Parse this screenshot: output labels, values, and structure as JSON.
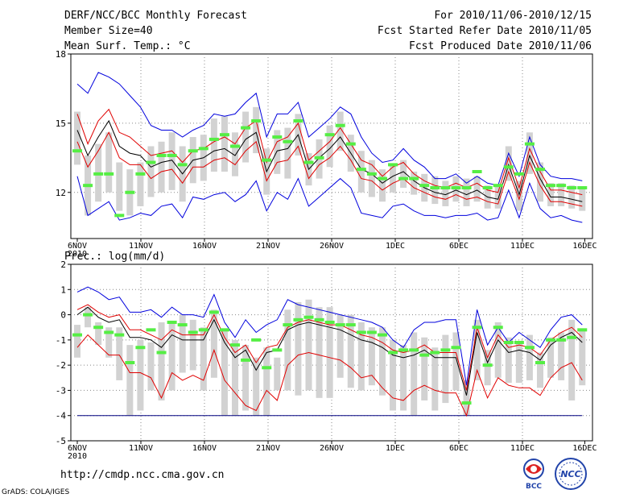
{
  "header": {
    "title": "DERF/NCC/BCC Monthly Forecast",
    "member": "Member Size=40",
    "variable": "Mean Surf. Temp.: °C",
    "period": "For 2010/11/06-2010/12/15",
    "started": "Fcst Started Refer Date 2010/11/05",
    "produced": "Fcst Produced Date 2010/11/06"
  },
  "footer": {
    "url": "http://cmdp.ncc.cma.gov.cn",
    "credit": "GrADS: COLA/IGES"
  },
  "logos": {
    "bcc": "BCC",
    "ncc": "NCC"
  },
  "colors": {
    "box": "#d2d2d2",
    "mean": "#000000",
    "std": "#e00000",
    "extreme": "#0000dd",
    "median": "#55ee44",
    "floor": "#000080"
  },
  "chart_data": [
    {
      "type": "line",
      "title": "Mean Surf. Temp.: °C",
      "ylim": [
        10,
        18
      ],
      "yticks": [
        12,
        15,
        18
      ],
      "x_days": 40,
      "xticks": [
        {
          "day": 0,
          "label": "6NOV",
          "sub": "2010"
        },
        {
          "day": 5,
          "label": "11NOV"
        },
        {
          "day": 10,
          "label": "16NOV"
        },
        {
          "day": 15,
          "label": "21NOV"
        },
        {
          "day": 20,
          "label": "26NOV"
        },
        {
          "day": 25,
          "label": "1DEC"
        },
        {
          "day": 30,
          "label": "6DEC"
        },
        {
          "day": 35,
          "label": "11DEC"
        },
        {
          "day": 39.9,
          "label": "16DEC"
        }
      ],
      "series": [
        {
          "name": "max",
          "values": [
            16.7,
            16.3,
            17.2,
            17.0,
            16.7,
            16.2,
            15.7,
            14.9,
            14.7,
            14.7,
            14.4,
            14.7,
            14.9,
            15.4,
            15.3,
            15.4,
            15.9,
            16.3,
            14.4,
            15.4,
            15.4,
            15.9,
            14.4,
            14.8,
            15.2,
            15.7,
            15.4,
            14.4,
            13.7,
            13.3,
            13.4,
            13.9,
            13.4,
            13.1,
            12.6,
            12.6,
            12.8,
            12.4,
            12.7,
            12.4,
            12.3,
            13.7,
            12.7,
            14.4,
            13.2,
            12.7,
            12.6,
            12.6,
            12.5
          ]
        },
        {
          "name": "std_hi",
          "values": [
            15.4,
            14.1,
            15.1,
            15.6,
            14.6,
            14.4,
            14.0,
            13.6,
            13.7,
            13.8,
            13.3,
            13.8,
            13.9,
            14.2,
            14.4,
            14.1,
            14.8,
            15.1,
            13.3,
            14.2,
            14.4,
            15.0,
            13.4,
            13.8,
            14.2,
            14.8,
            14.1,
            13.4,
            13.2,
            12.7,
            13.1,
            13.3,
            12.8,
            12.5,
            12.3,
            12.2,
            12.4,
            12.2,
            12.4,
            12.1,
            12.0,
            13.5,
            12.2,
            13.9,
            12.9,
            12.1,
            12.1,
            12.0,
            11.9
          ]
        },
        {
          "name": "mean",
          "values": [
            14.7,
            13.6,
            14.4,
            15.1,
            14.0,
            13.7,
            13.6,
            13.1,
            13.3,
            13.4,
            12.8,
            13.4,
            13.5,
            13.8,
            13.9,
            13.6,
            14.3,
            14.6,
            12.9,
            13.8,
            13.9,
            14.5,
            13.0,
            13.5,
            13.9,
            14.4,
            13.7,
            13.0,
            12.8,
            12.4,
            12.7,
            12.9,
            12.5,
            12.2,
            12.0,
            11.9,
            12.1,
            11.9,
            12.1,
            11.8,
            11.7,
            13.2,
            11.9,
            13.6,
            12.6,
            11.8,
            11.8,
            11.7,
            11.6
          ]
        },
        {
          "name": "std_lo",
          "values": [
            14.2,
            13.1,
            13.8,
            14.6,
            13.5,
            13.2,
            13.2,
            12.6,
            12.9,
            13.0,
            12.4,
            13.1,
            13.1,
            13.4,
            13.5,
            13.2,
            13.8,
            14.2,
            12.5,
            13.3,
            13.4,
            14.0,
            12.6,
            13.2,
            13.5,
            14.0,
            13.4,
            12.6,
            12.5,
            12.1,
            12.4,
            12.6,
            12.2,
            12.0,
            11.8,
            11.7,
            11.9,
            11.7,
            11.8,
            11.6,
            11.5,
            12.9,
            11.7,
            13.3,
            12.3,
            11.6,
            11.6,
            11.5,
            11.4
          ]
        },
        {
          "name": "min",
          "values": [
            12.7,
            11.0,
            11.3,
            11.6,
            10.8,
            10.9,
            11.1,
            11.0,
            11.4,
            11.5,
            10.9,
            11.8,
            11.7,
            11.9,
            12.0,
            11.6,
            11.9,
            12.5,
            11.2,
            12.0,
            11.7,
            12.6,
            11.4,
            11.8,
            12.2,
            12.6,
            12.2,
            11.1,
            11.0,
            10.9,
            11.4,
            11.5,
            11.2,
            11.0,
            11.0,
            10.9,
            11.0,
            11.0,
            11.1,
            10.8,
            10.9,
            12.1,
            10.9,
            12.4,
            11.3,
            10.9,
            11.0,
            10.8,
            10.7
          ]
        }
      ],
      "boxes": [
        [
          13.2,
          15.5
        ],
        [
          11.0,
          13.6
        ],
        [
          11.6,
          14.1
        ],
        [
          12.0,
          14.6
        ],
        [
          11.2,
          13.3
        ],
        [
          11.0,
          13.0
        ],
        [
          11.4,
          13.3
        ],
        [
          11.8,
          14.0
        ],
        [
          12.0,
          14.2
        ],
        [
          12.1,
          14.6
        ],
        [
          11.6,
          14.0
        ],
        [
          12.4,
          14.4
        ],
        [
          12.5,
          14.5
        ],
        [
          12.9,
          15.2
        ],
        [
          12.9,
          15.3
        ],
        [
          12.7,
          14.6
        ],
        [
          13.3,
          15.5
        ],
        [
          13.7,
          15.7
        ],
        [
          11.9,
          13.9
        ],
        [
          12.8,
          14.7
        ],
        [
          12.6,
          14.8
        ],
        [
          13.6,
          15.4
        ],
        [
          12.3,
          13.7
        ],
        [
          12.6,
          14.3
        ],
        [
          13.1,
          14.9
        ],
        [
          13.8,
          15.5
        ],
        [
          12.9,
          14.5
        ],
        [
          12.0,
          13.8
        ],
        [
          11.8,
          13.4
        ],
        [
          11.6,
          13.0
        ],
        [
          12.0,
          13.2
        ],
        [
          12.2,
          13.4
        ],
        [
          11.9,
          12.9
        ],
        [
          11.6,
          12.8
        ],
        [
          11.5,
          12.7
        ],
        [
          11.4,
          12.5
        ],
        [
          11.6,
          12.7
        ],
        [
          11.4,
          12.6
        ],
        [
          11.6,
          12.7
        ],
        [
          11.3,
          12.3
        ],
        [
          11.3,
          12.3
        ],
        [
          12.5,
          14.0
        ],
        [
          11.2,
          12.5
        ],
        [
          12.8,
          14.6
        ],
        [
          11.6,
          13.3
        ],
        [
          11.4,
          12.4
        ],
        [
          11.4,
          12.4
        ],
        [
          11.3,
          12.3
        ],
        [
          11.2,
          12.2
        ]
      ],
      "medians": [
        13.8,
        12.3,
        12.8,
        12.8,
        11.0,
        12.0,
        12.8,
        13.3,
        13.6,
        13.6,
        13.2,
        13.8,
        13.9,
        14.3,
        14.5,
        14.0,
        14.8,
        15.1,
        13.4,
        14.4,
        14.2,
        15.1,
        13.3,
        13.5,
        14.5,
        14.9,
        14.1,
        13.0,
        12.8,
        12.6,
        13.2,
        12.6,
        12.6,
        12.3,
        12.2,
        12.2,
        12.2,
        12.2,
        12.9,
        12.2,
        12.3,
        13.1,
        12.8,
        14.1,
        13.0,
        12.3,
        12.3,
        12.2,
        12.2
      ]
    },
    {
      "type": "line",
      "title": "Prec.: log(mm/d)",
      "ylim": [
        -5,
        2
      ],
      "yticks": [
        -5,
        -4,
        -3,
        -2,
        -1,
        0,
        1,
        2
      ],
      "floor": -4,
      "x_days": 40,
      "xticks": [
        {
          "day": 0,
          "label": "6NOV",
          "sub": "2010"
        },
        {
          "day": 5,
          "label": "11NOV"
        },
        {
          "day": 10,
          "label": "16NOV"
        },
        {
          "day": 15,
          "label": "21NOV"
        },
        {
          "day": 20,
          "label": "26NOV"
        },
        {
          "day": 25,
          "label": "1DEC"
        },
        {
          "day": 30,
          "label": "6DEC"
        },
        {
          "day": 35,
          "label": "11DEC"
        },
        {
          "day": 39.9,
          "label": "16DEC"
        }
      ],
      "series": [
        {
          "name": "max",
          "values": [
            0.9,
            1.1,
            0.9,
            0.6,
            0.7,
            0.1,
            0.1,
            0.2,
            -0.1,
            0.3,
            0.0,
            0.0,
            -0.1,
            0.8,
            -0.3,
            -0.9,
            -0.2,
            -0.7,
            -0.4,
            -0.2,
            0.6,
            0.4,
            0.3,
            0.2,
            0.1,
            0.0,
            -0.1,
            -0.2,
            -0.3,
            -0.5,
            -1.0,
            -1.3,
            -0.6,
            -0.3,
            -0.3,
            -0.2,
            -0.2,
            -2.8,
            0.2,
            -1.2,
            -0.5,
            -1.1,
            -0.7,
            -1.0,
            -1.3,
            -0.6,
            -0.1,
            0.0,
            -0.4
          ]
        },
        {
          "name": "std_hi",
          "values": [
            0.2,
            0.4,
            0.1,
            -0.1,
            0.0,
            -0.6,
            -0.6,
            -0.8,
            -1.0,
            -0.6,
            -0.8,
            -0.8,
            -0.8,
            0.0,
            -0.9,
            -1.5,
            -1.2,
            -1.9,
            -1.3,
            -1.2,
            -0.5,
            -0.3,
            -0.2,
            -0.3,
            -0.4,
            -0.4,
            -0.6,
            -0.8,
            -0.9,
            -1.1,
            -1.4,
            -1.5,
            -1.4,
            -1.2,
            -1.5,
            -1.5,
            -1.5,
            -3.0,
            -0.5,
            -1.7,
            -0.8,
            -1.3,
            -1.2,
            -1.3,
            -1.6,
            -1.0,
            -0.7,
            -0.5,
            -0.9
          ]
        },
        {
          "name": "mean",
          "values": [
            0.0,
            0.3,
            -0.1,
            -0.3,
            -0.2,
            -0.9,
            -0.9,
            -1.0,
            -1.3,
            -0.8,
            -1.0,
            -1.0,
            -1.0,
            -0.2,
            -1.1,
            -1.7,
            -1.4,
            -2.2,
            -1.5,
            -1.4,
            -0.6,
            -0.4,
            -0.3,
            -0.4,
            -0.5,
            -0.6,
            -0.8,
            -1.0,
            -1.1,
            -1.3,
            -1.6,
            -1.7,
            -1.6,
            -1.4,
            -1.7,
            -1.7,
            -1.7,
            -3.2,
            -0.7,
            -1.9,
            -1.0,
            -1.5,
            -1.4,
            -1.5,
            -1.8,
            -1.2,
            -0.9,
            -0.7,
            -1.1
          ]
        },
        {
          "name": "std_lo",
          "values": [
            -1.3,
            -0.8,
            -1.2,
            -1.6,
            -1.6,
            -2.3,
            -2.3,
            -2.5,
            -3.3,
            -2.3,
            -2.6,
            -2.4,
            -2.6,
            -1.4,
            -2.6,
            -3.1,
            -3.6,
            -3.8,
            -3.0,
            -3.4,
            -2.0,
            -1.6,
            -1.5,
            -1.6,
            -1.7,
            -1.8,
            -2.1,
            -2.5,
            -2.4,
            -2.9,
            -3.3,
            -3.4,
            -3.0,
            -2.8,
            -3.0,
            -3.1,
            -3.1,
            -4.0,
            -2.2,
            -3.3,
            -2.5,
            -2.8,
            -2.9,
            -2.9,
            -3.2,
            -2.5,
            -2.1,
            -1.9,
            -2.6
          ]
        },
        {
          "name": "min",
          "values": [
            -4.0,
            -4.0,
            -4.0,
            -4.0,
            -4.0,
            -4.0,
            -4.0,
            -4.0,
            -4.0,
            -4.0,
            -4.0,
            -4.0,
            -4.0,
            -4.0,
            -4.0,
            -4.0,
            -4.0,
            -4.0,
            -4.0,
            -4.0,
            -4.0,
            -4.0,
            -4.0,
            -4.0,
            -4.0,
            -4.0,
            -4.0,
            -4.0,
            -4.0,
            -4.0,
            -4.0,
            -4.0,
            -4.0,
            -4.0,
            -4.0,
            -4.0,
            -4.0,
            -4.0,
            -4.0,
            -4.0,
            -4.0,
            -4.0,
            -4.0,
            -4.0,
            -4.0,
            -4.0,
            -4.0,
            -4.0,
            -4.0
          ]
        }
      ],
      "boxes": [
        [
          -1.7,
          -0.4
        ],
        [
          -0.5,
          0.3
        ],
        [
          -1.2,
          -0.3
        ],
        [
          -1.7,
          -0.5
        ],
        [
          -2.6,
          -0.5
        ],
        [
          -4.0,
          -1.2
        ],
        [
          -3.8,
          -1.0
        ],
        [
          -3.0,
          -1.1
        ],
        [
          -3.4,
          -0.3
        ],
        [
          -3.0,
          -0.3
        ],
        [
          -2.3,
          0.0
        ],
        [
          -2.2,
          -0.2
        ],
        [
          -3.0,
          -0.5
        ],
        [
          -2.5,
          0.2
        ],
        [
          -4.0,
          -0.6
        ],
        [
          -4.0,
          -1.0
        ],
        [
          -3.8,
          -1.2
        ],
        [
          -4.0,
          -1.7
        ],
        [
          -4.0,
          -1.3
        ],
        [
          -3.0,
          -1.7
        ],
        [
          -3.0,
          0.2
        ],
        [
          -3.2,
          0.5
        ],
        [
          -3.0,
          0.6
        ],
        [
          -3.3,
          0.3
        ],
        [
          -3.3,
          0.3
        ],
        [
          -2.5,
          0.0
        ],
        [
          -2.9,
          0.0
        ],
        [
          -3.0,
          -0.3
        ],
        [
          -2.8,
          -0.5
        ],
        [
          -3.2,
          -0.5
        ],
        [
          -3.8,
          -1.0
        ],
        [
          -3.8,
          -1.2
        ],
        [
          -4.0,
          -0.7
        ],
        [
          -3.4,
          -0.9
        ],
        [
          -3.8,
          -1.3
        ],
        [
          -3.5,
          -0.8
        ],
        [
          -3.0,
          -0.7
        ],
        [
          -4.0,
          -2.6
        ],
        [
          -2.6,
          -0.2
        ],
        [
          -2.8,
          -1.4
        ],
        [
          -2.5,
          -0.3
        ],
        [
          -2.7,
          -0.9
        ],
        [
          -2.7,
          -1.1
        ],
        [
          -2.6,
          -0.8
        ],
        [
          -2.9,
          -1.5
        ],
        [
          -2.5,
          -0.9
        ],
        [
          -2.6,
          -0.7
        ],
        [
          -3.4,
          -0.2
        ],
        [
          -2.8,
          -0.6
        ]
      ],
      "medians": [
        -0.8,
        0.0,
        -0.5,
        -0.7,
        -0.8,
        -1.9,
        -1.3,
        -0.6,
        -1.5,
        -0.3,
        -0.4,
        -0.7,
        -0.6,
        0.1,
        -0.6,
        -1.2,
        -1.8,
        -1.0,
        -2.1,
        -1.4,
        -0.4,
        -0.2,
        -0.1,
        -0.2,
        -0.3,
        -0.4,
        -0.4,
        -0.7,
        -0.7,
        -0.8,
        -1.5,
        -1.4,
        -1.4,
        -1.6,
        -1.5,
        -1.4,
        -1.3,
        -3.5,
        -0.5,
        -2.0,
        -0.5,
        -1.1,
        -1.1,
        -1.3,
        -1.9,
        -1.0,
        -1.0,
        -0.9,
        -0.6
      ]
    }
  ]
}
